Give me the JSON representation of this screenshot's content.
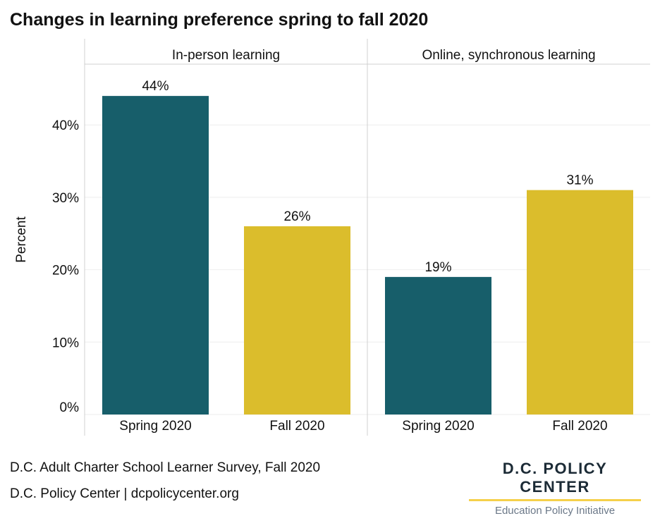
{
  "chart_data": {
    "type": "bar",
    "title": "Changes in learning preference spring to fall 2020",
    "ylabel": "Percent",
    "ylim": [
      0,
      48
    ],
    "yticks": [
      0,
      10,
      20,
      30,
      40
    ],
    "ytick_labels": [
      "0%",
      "10%",
      "20%",
      "30%",
      "40%"
    ],
    "grid": true,
    "panels": [
      {
        "name": "In-person learning",
        "categories": [
          "Spring 2020",
          "Fall 2020"
        ],
        "values": [
          44,
          26
        ],
        "labels": [
          "44%",
          "26%"
        ]
      },
      {
        "name": "Online, synchronous learning",
        "categories": [
          "Spring 2020",
          "Fall 2020"
        ],
        "values": [
          19,
          31
        ],
        "labels": [
          "19%",
          "31%"
        ]
      }
    ],
    "colors": {
      "Spring 2020": "#175e6a",
      "Fall 2020": "#dbbd2c"
    }
  },
  "footer": {
    "source": "D.C. Adult Charter School Learner Survey, Fall 2020",
    "credit": "D.C. Policy Center | dcpolicycenter.org"
  },
  "logo": {
    "main": "D.C. POLICY CENTER",
    "sub": "Education Policy Initiative"
  }
}
